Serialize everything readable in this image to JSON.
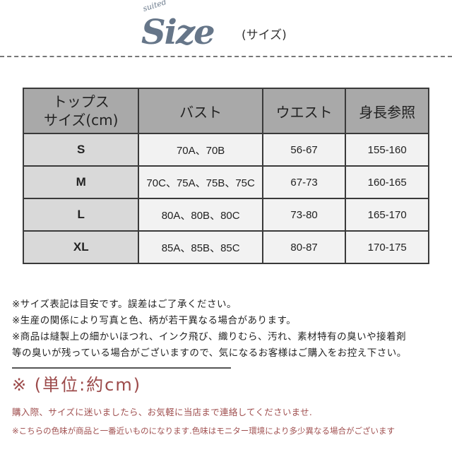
{
  "title": {
    "tag": "suited",
    "main": "Size",
    "sub": "(サイズ)"
  },
  "table": {
    "headers": [
      "トップス\nサイズ(cm)",
      "バスト",
      "ウエスト",
      "身長参照"
    ],
    "rows": [
      [
        "S",
        "70A、70B",
        "56-67",
        "155-160"
      ],
      [
        "M",
        "70C、75A、75B、75C",
        "67-73",
        "160-165"
      ],
      [
        "L",
        "80A、80B、80C",
        "73-80",
        "165-170"
      ],
      [
        "XL",
        "85A、85B、85C",
        "80-87",
        "170-175"
      ]
    ]
  },
  "notes": [
    "※サイズ表記は目安です。誤差はご了承ください。",
    "※生産の関係により写真と色、柄が若干異なる場合があります。",
    "※商品は縫製上の細かいほつれ、インク飛び、織りむら、汚れ、素材特有の臭いや接着剤",
    "等の臭いが残っている場合がございますので、気になるお客様はご購入をお控え下さい。"
  ],
  "unit": "※ (単位:約cm)",
  "contact": "購入際、サイズに迷いましたら、お気軽に当店まで連絡してくださいませ.",
  "color_note": "※こちらの色味が商品と一番近いものになります.色味はモニター環境により多少異なる場合がございます",
  "colors": {
    "title": "#667689",
    "header_bg": "#a9a9a9",
    "size_col_bg": "#d9d9d9",
    "note_red": "#a05050"
  }
}
